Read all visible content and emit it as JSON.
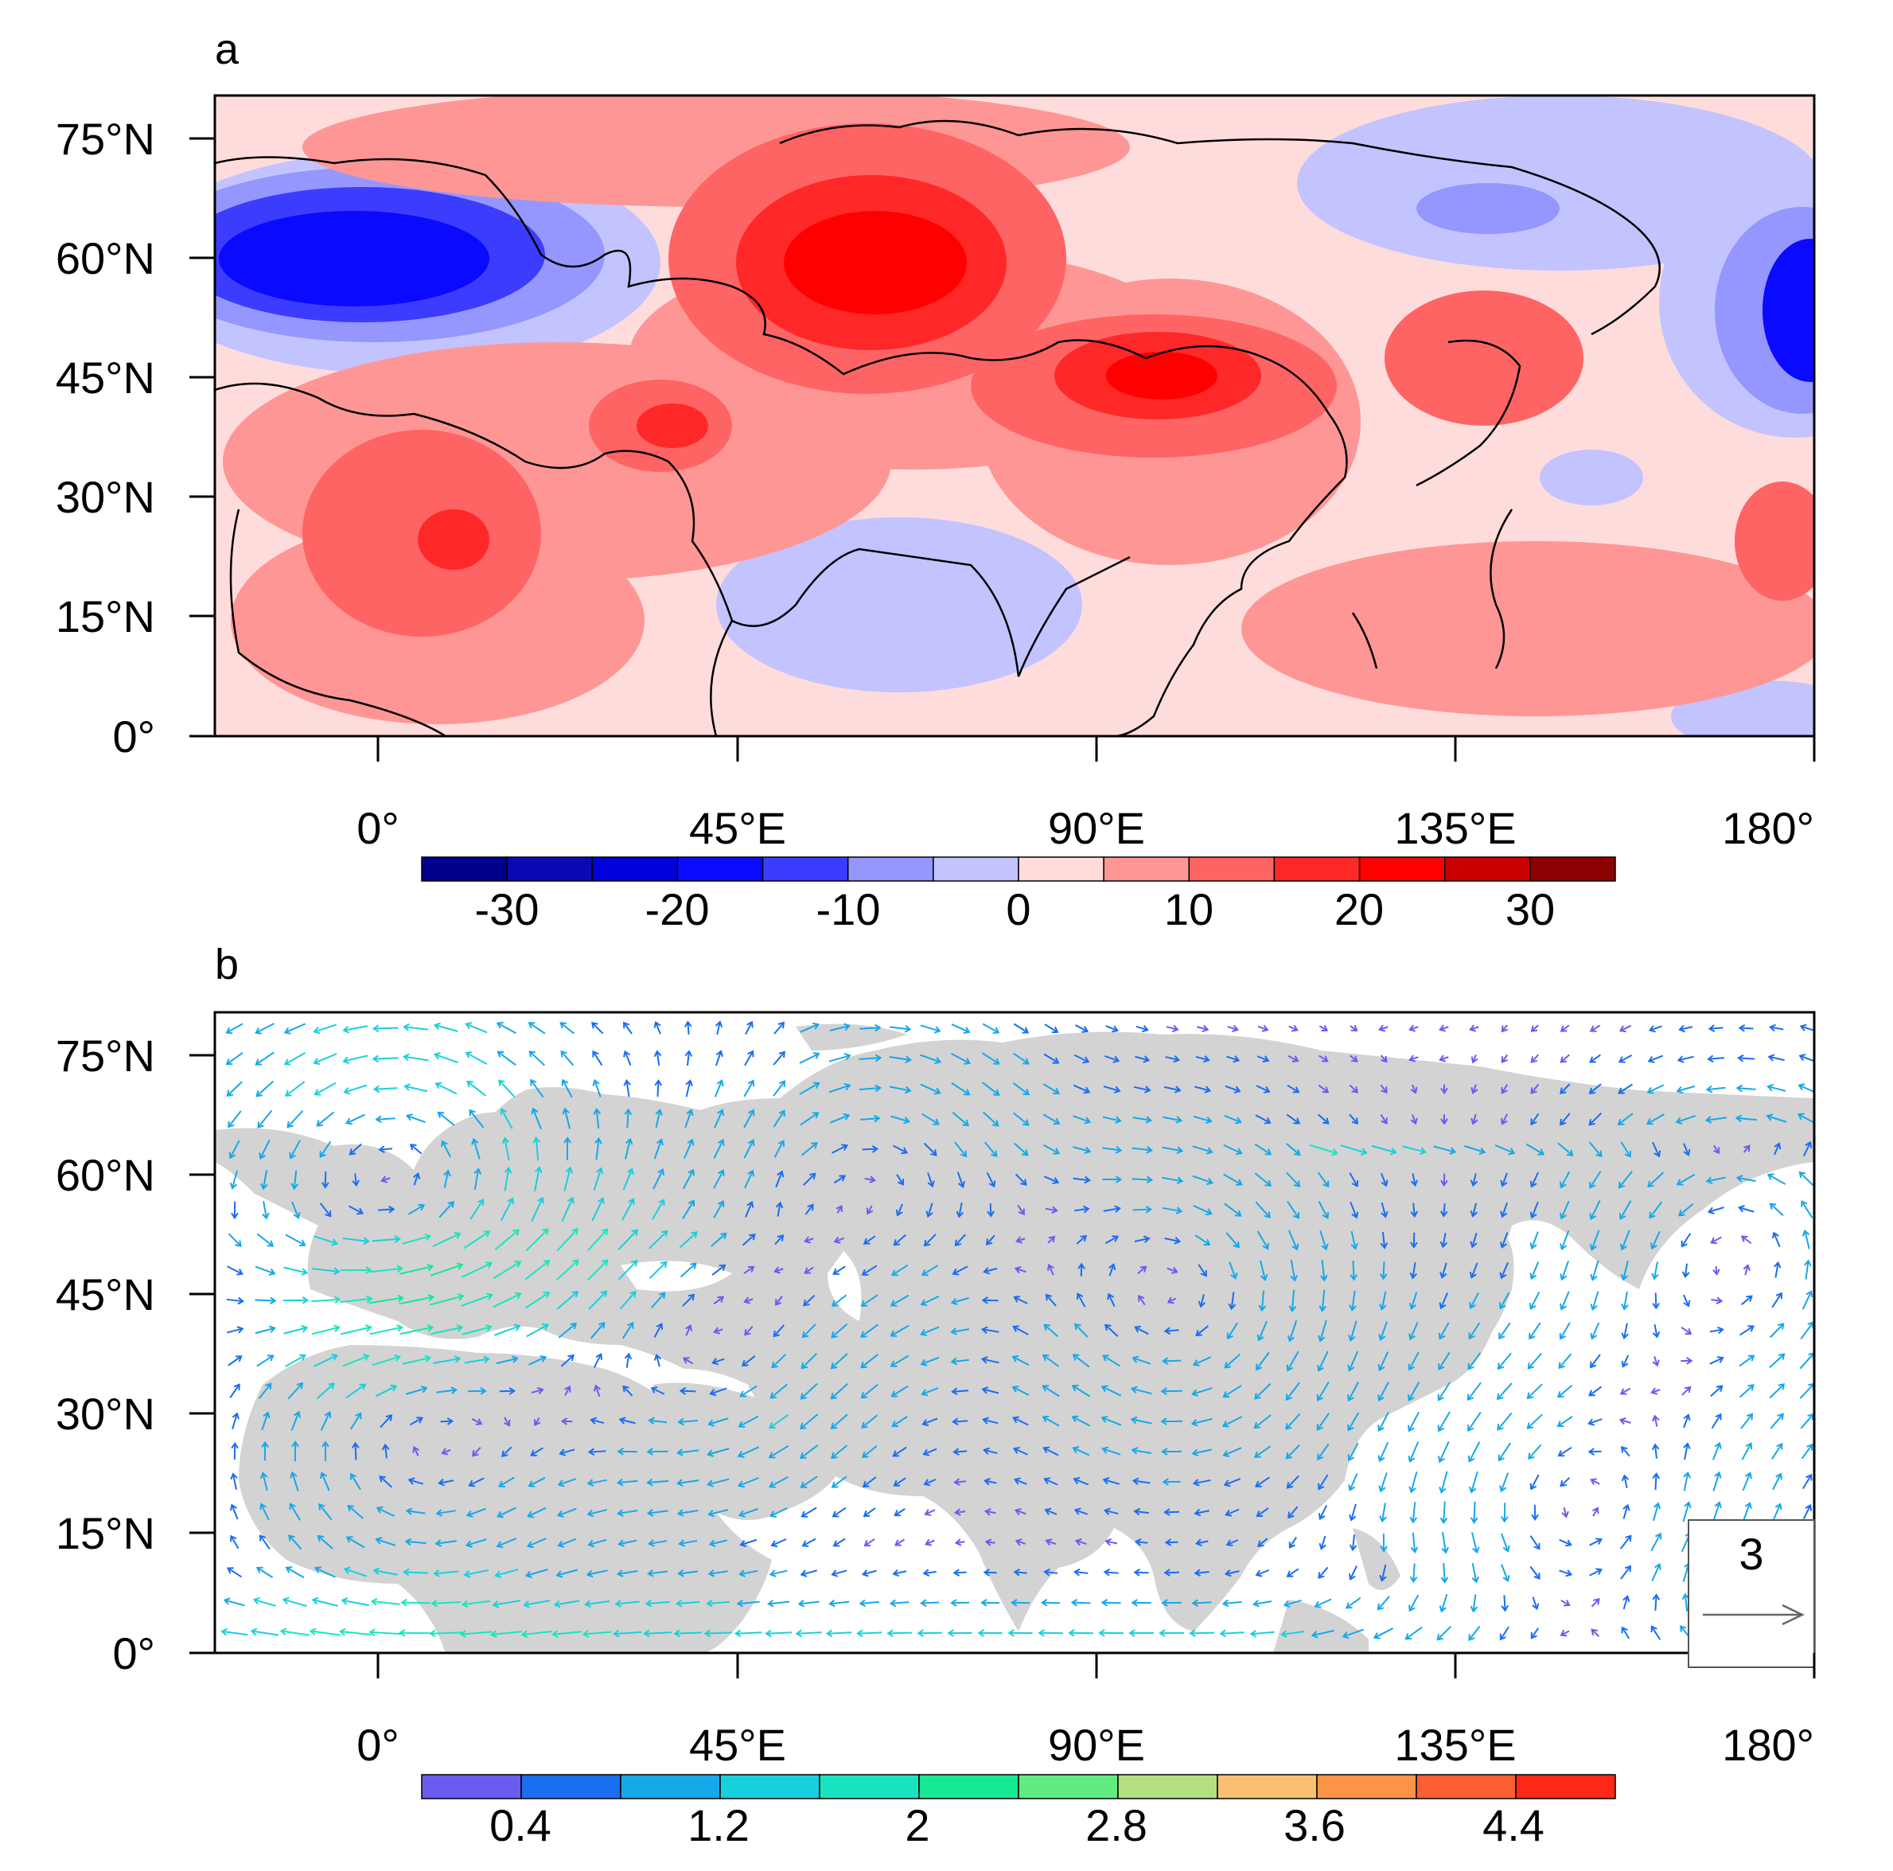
{
  "panel_a": {
    "label": "a",
    "type": "contour-map",
    "lat_ticks": [
      "75°N",
      "60°N",
      "45°N",
      "30°N",
      "15°N",
      "0°"
    ],
    "lon_ticks": [
      "0°",
      "45°E",
      "90°E",
      "135°E",
      "180°"
    ],
    "colorbar": {
      "labels": [
        "-30",
        "-20",
        "-10",
        "0",
        "10",
        "20",
        "30"
      ],
      "colors": [
        "#00008b",
        "#0a0ab4",
        "#0000dc",
        "#0a0aff",
        "#3c3cff",
        "#9696ff",
        "#c3c3ff",
        "#ffdcdc",
        "#ff9696",
        "#ff6464",
        "#ff2828",
        "#ff0000",
        "#c80000",
        "#8b0000"
      ]
    },
    "anomaly_centers": [
      {
        "lon": 0,
        "lat": 60,
        "sign": "negative",
        "level": -25
      },
      {
        "lon": 63,
        "lat": 60,
        "sign": "positive",
        "level": 20
      },
      {
        "lon": 102,
        "lat": 45,
        "sign": "positive",
        "level": 20
      },
      {
        "lon": 10,
        "lat": 25,
        "sign": "positive",
        "level": 20
      },
      {
        "lon": 37,
        "lat": 39,
        "sign": "positive",
        "level": 15
      },
      {
        "lon": 141,
        "lat": 50,
        "sign": "positive",
        "level": 10
      },
      {
        "lon": 177,
        "lat": 52,
        "sign": "negative",
        "level": -20
      },
      {
        "lon": 128,
        "lat": 63,
        "sign": "negative",
        "level": -10
      },
      {
        "lon": 75,
        "lat": 15,
        "sign": "negative",
        "level": -5
      }
    ]
  },
  "panel_b": {
    "label": "b",
    "type": "vector-map",
    "lat_ticks": [
      "75°N",
      "60°N",
      "45°N",
      "30°N",
      "15°N",
      "0°"
    ],
    "lon_ticks": [
      "0°",
      "45°E",
      "90°E",
      "135°E",
      "180°"
    ],
    "reference_vector": "3",
    "colorbar": {
      "labels": [
        "0.4",
        "1.2",
        "2",
        "2.8",
        "3.6",
        "4.4"
      ],
      "colors": [
        "#6a5cf0",
        "#1a6ef0",
        "#16a8e8",
        "#18d0dc",
        "#1ae4c0",
        "#16e894",
        "#60ec80",
        "#b4e080",
        "#f8c070",
        "#fc9448",
        "#fc6030",
        "#fc2818"
      ]
    },
    "circulation_centers": [
      {
        "lon": 63,
        "lat": 60,
        "sense": "clockwise"
      },
      {
        "lon": 5,
        "lat": 28,
        "sense": "clockwise"
      },
      {
        "lon": 40,
        "lat": 38,
        "sense": "clockwise"
      },
      {
        "lon": 100,
        "lat": 45,
        "sense": "clockwise"
      },
      {
        "lon": 2,
        "lat": 60,
        "sense": "counterclockwise"
      },
      {
        "lon": 150,
        "lat": 17,
        "sense": "counterclockwise"
      },
      {
        "lon": 170,
        "lat": 50,
        "sense": "counterclockwise"
      }
    ]
  }
}
